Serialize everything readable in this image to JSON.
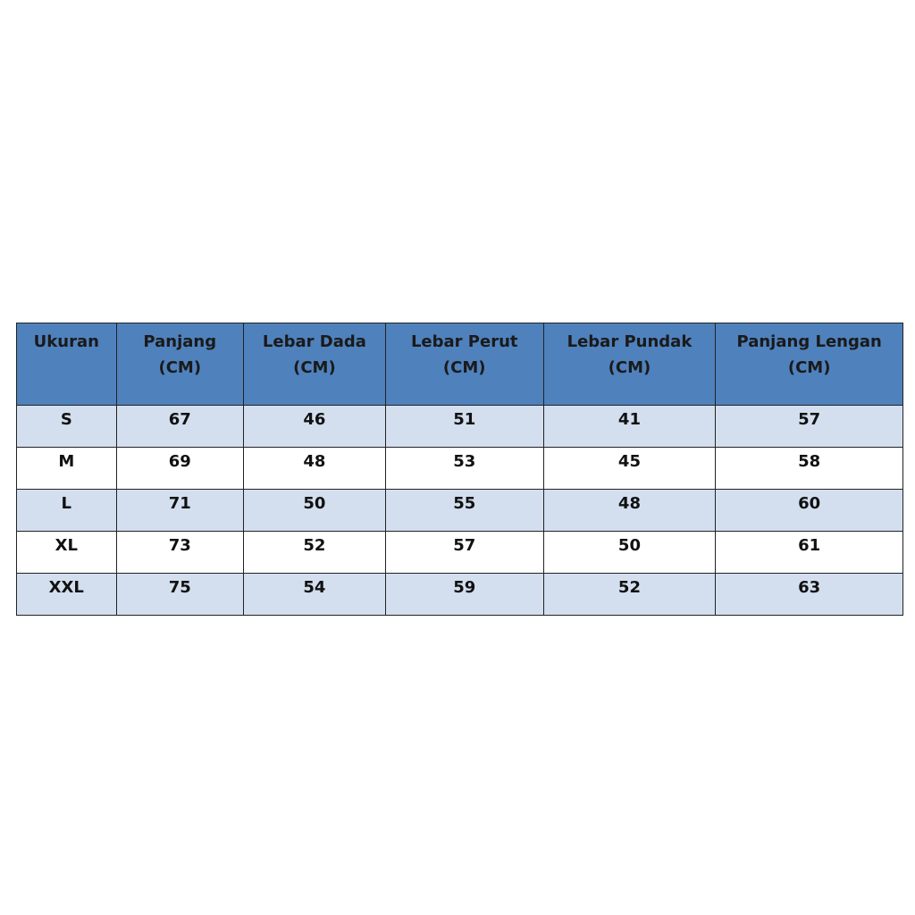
{
  "table": {
    "headers": [
      {
        "line1": "Ukuran",
        "line2": ""
      },
      {
        "line1": "Panjang",
        "line2": "(CM)"
      },
      {
        "line1": "Lebar Dada",
        "line2": "(CM)"
      },
      {
        "line1": "Lebar Perut",
        "line2": "(CM)"
      },
      {
        "line1": "Lebar Pundak",
        "line2": "(CM)"
      },
      {
        "line1": "Panjang Lengan",
        "line2": "(CM)"
      }
    ],
    "rows": [
      [
        "S",
        "67",
        "46",
        "51",
        "41",
        "57"
      ],
      [
        "M",
        "69",
        "48",
        "53",
        "45",
        "58"
      ],
      [
        "L",
        "71",
        "50",
        "55",
        "48",
        "60"
      ],
      [
        "XL",
        "73",
        "52",
        "57",
        "50",
        "61"
      ],
      [
        "XXL",
        "75",
        "54",
        "59",
        "52",
        "63"
      ]
    ]
  },
  "colors": {
    "header": "#4f81bd",
    "band": "#d3dfee"
  }
}
